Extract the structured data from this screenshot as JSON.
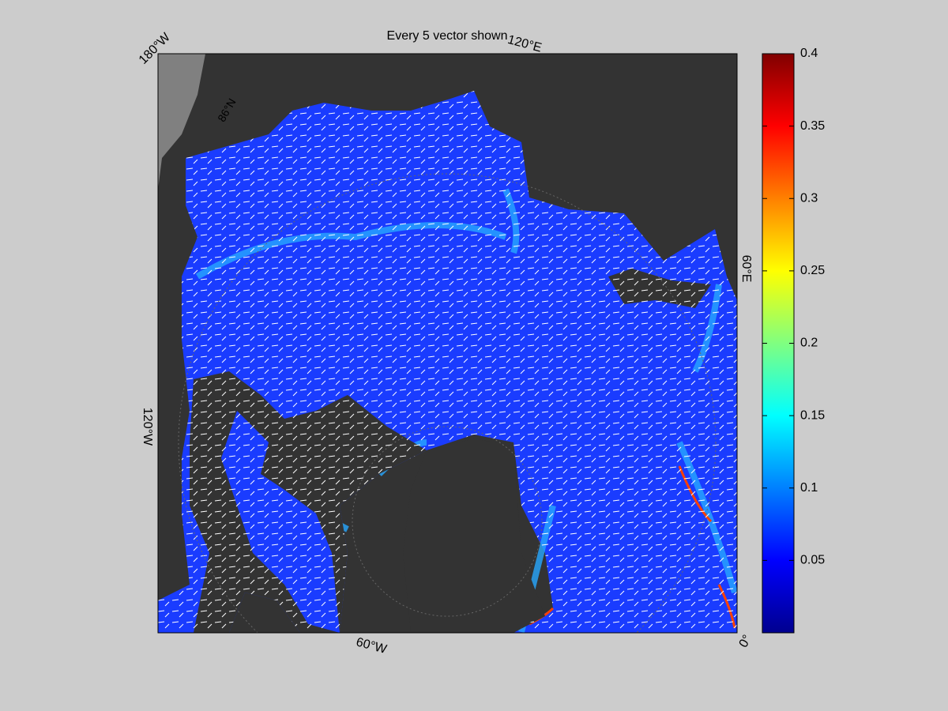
{
  "title": "Every 5 vector shown",
  "graticule_labels": [
    "180°W",
    "120°E",
    "60°E",
    "0°",
    "60°W",
    "120°W",
    "86°N"
  ],
  "colorbar": {
    "lim": [
      0,
      0.4
    ],
    "ticks": [
      0.05,
      0.1,
      0.15,
      0.2,
      0.25,
      0.3,
      0.35,
      0.4
    ],
    "colormap": [
      "#00008f",
      "#0000ff",
      "#0080ff",
      "#00ffff",
      "#80ff80",
      "#ffff00",
      "#ff8000",
      "#ff0000",
      "#800000"
    ]
  }
}
